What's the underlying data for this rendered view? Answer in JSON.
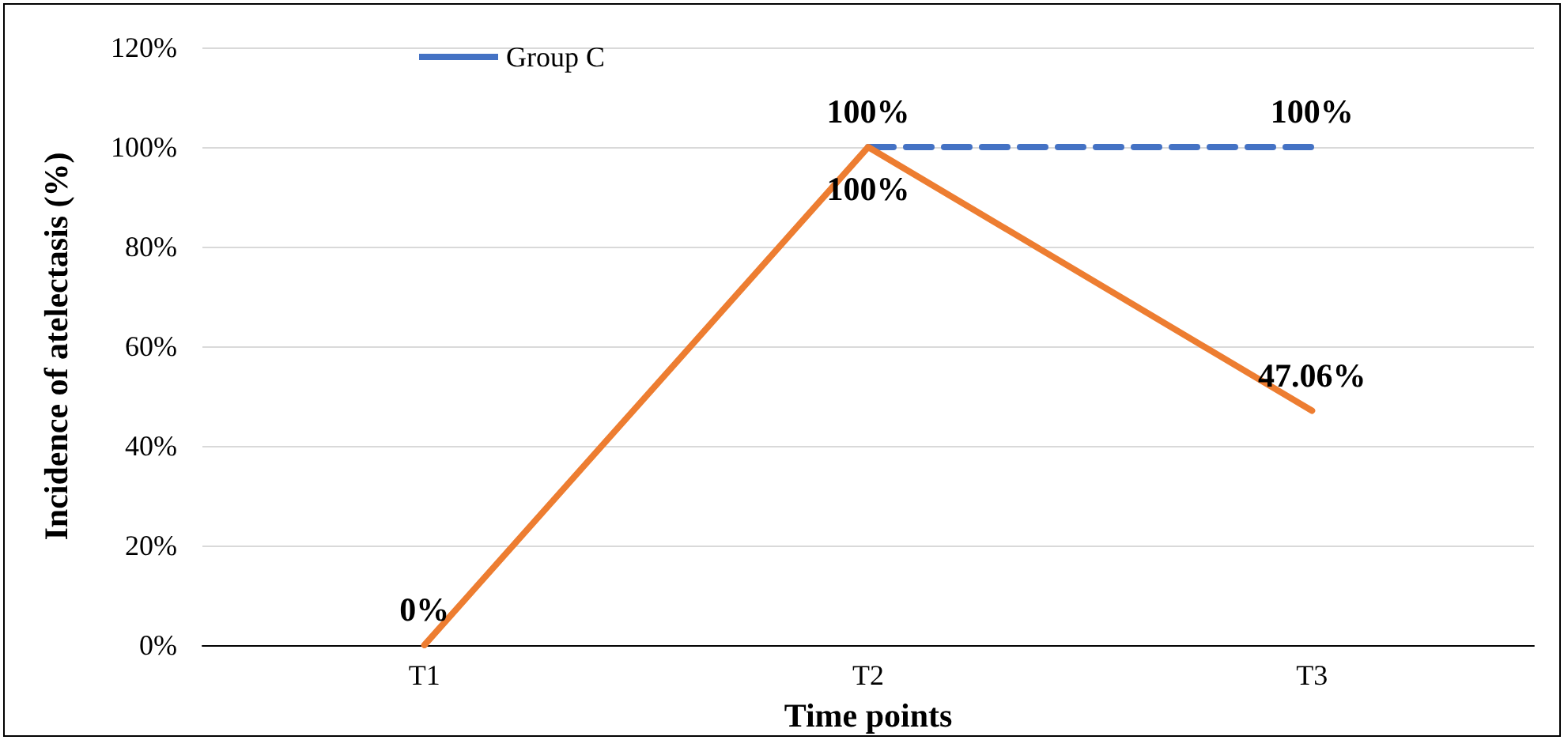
{
  "chart_data": {
    "type": "line",
    "xlabel": "Time points",
    "ylabel": "Incidence of atelectasis (%)",
    "categories": [
      "T1",
      "T2",
      "T3"
    ],
    "series": [
      {
        "name": "Group C",
        "color": "#4472c4",
        "line_style": "dashed",
        "values": [
          null,
          100,
          100
        ],
        "value_labels": [
          null,
          "100%",
          "100%"
        ]
      },
      {
        "color": "#ed7d31",
        "line_style": "solid",
        "values": [
          0,
          100,
          47.06
        ],
        "value_labels": [
          "0%",
          "100%",
          "47.06%"
        ]
      }
    ],
    "ylim": [
      0,
      120
    ],
    "yticks": [
      {
        "value": 0,
        "label": "0%"
      },
      {
        "value": 20,
        "label": "20%"
      },
      {
        "value": 40,
        "label": "40%"
      },
      {
        "value": 60,
        "label": "60%"
      },
      {
        "value": 80,
        "label": "80%"
      },
      {
        "value": 100,
        "label": "100%"
      },
      {
        "value": 120,
        "label": "120%"
      }
    ],
    "grid": "y",
    "legend": "top left",
    "marker": "none"
  }
}
